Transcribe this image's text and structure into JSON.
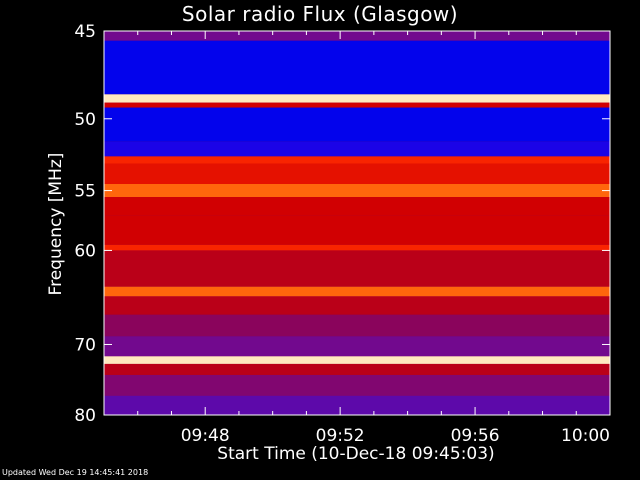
{
  "chart_data": {
    "type": "heatmap",
    "title": "Solar radio Flux (Glasgow)",
    "xlabel": "Start Time (10-Dec-18 09:45:03)",
    "ylabel": "Frequency [MHz]",
    "x_tick_labels": [
      "09:48",
      "09:52",
      "09:56",
      "10:00"
    ],
    "x_tick_minutes": [
      3,
      7,
      11,
      15
    ],
    "x_range_minutes": [
      0,
      15
    ],
    "y_ticks": [
      45,
      50,
      55,
      60,
      70,
      80
    ],
    "y_range": [
      45,
      80
    ],
    "y_scale": "reciprocal",
    "colormap": [
      "#000000",
      "#1010a0",
      "#0000ff",
      "#6a0a9e",
      "#a00030",
      "#d40000",
      "#ff2a00",
      "#ff7a10",
      "#ffd070",
      "#ffffff"
    ],
    "bands": [
      {
        "from": 45.0,
        "to": 45.5,
        "level": 0.35
      },
      {
        "from": 45.5,
        "to": 48.5,
        "level": 0.2
      },
      {
        "from": 48.5,
        "to": 49.0,
        "level": 0.95
      },
      {
        "from": 49.0,
        "to": 49.3,
        "level": 0.55
      },
      {
        "from": 49.3,
        "to": 51.5,
        "level": 0.2
      },
      {
        "from": 51.5,
        "to": 52.5,
        "level": 0.25
      },
      {
        "from": 52.5,
        "to": 53.0,
        "level": 0.65
      },
      {
        "from": 53.0,
        "to": 54.5,
        "level": 0.6
      },
      {
        "from": 54.5,
        "to": 55.5,
        "level": 0.75
      },
      {
        "from": 55.5,
        "to": 57.0,
        "level": 0.55
      },
      {
        "from": 57.0,
        "to": 59.5,
        "level": 0.55
      },
      {
        "from": 59.5,
        "to": 60.0,
        "level": 0.65
      },
      {
        "from": 60.0,
        "to": 63.5,
        "level": 0.5
      },
      {
        "from": 63.5,
        "to": 64.5,
        "level": 0.75
      },
      {
        "from": 64.5,
        "to": 66.5,
        "level": 0.5
      },
      {
        "from": 66.5,
        "to": 69.0,
        "level": 0.4
      },
      {
        "from": 69.0,
        "to": 71.5,
        "level": 0.35
      },
      {
        "from": 71.5,
        "to": 72.5,
        "level": 0.95
      },
      {
        "from": 72.5,
        "to": 74.0,
        "level": 0.5
      },
      {
        "from": 74.0,
        "to": 77.0,
        "level": 0.38
      },
      {
        "from": 77.0,
        "to": 80.0,
        "level": 0.32
      }
    ]
  },
  "footer": "Updated Wed Dec 19 14:45:41 2018"
}
